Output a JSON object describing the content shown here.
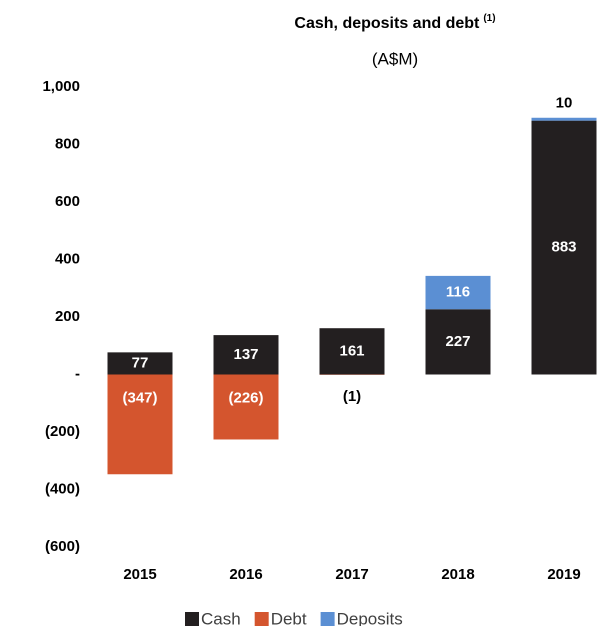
{
  "chart_data": {
    "type": "stacked_bar",
    "title": "Cash, deposits and debt",
    "title_superscript": "(1)",
    "subtitle": "(A$M)",
    "categories": [
      "2015",
      "2016",
      "2017",
      "2018",
      "2019"
    ],
    "series": [
      {
        "name": "Cash",
        "color": "#231f20",
        "values": [
          77,
          137,
          161,
          227,
          883
        ]
      },
      {
        "name": "Debt",
        "color": "#d4552e",
        "values": [
          -347,
          -226,
          -1,
          null,
          null
        ],
        "value_labels": [
          "(347)",
          "(226)",
          "(1)",
          null,
          null
        ]
      },
      {
        "name": "Deposits",
        "color": "#5b8fd3",
        "values": [
          null,
          null,
          null,
          116,
          10
        ]
      }
    ],
    "ylim": [
      -600,
      1000
    ],
    "yticks": [
      {
        "value": -600,
        "label": "(600)"
      },
      {
        "value": -400,
        "label": "(400)"
      },
      {
        "value": -200,
        "label": "(200)"
      },
      {
        "value": 0,
        "label": "-"
      },
      200,
      400,
      600,
      800,
      {
        "value": 1000,
        "label": "1,000"
      }
    ],
    "grid": false,
    "legend": "bottom"
  }
}
